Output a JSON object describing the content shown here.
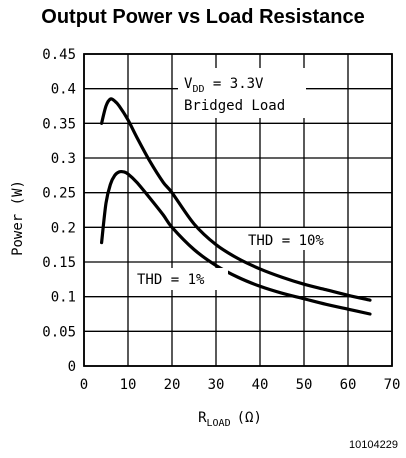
{
  "chart_data": {
    "type": "line",
    "title": "Output Power vs Load Resistance",
    "xlabel": {
      "main": "R",
      "sub": "LOAD",
      "unit": "(Ω)"
    },
    "ylabel": "Power (W)",
    "xlim": [
      0,
      70
    ],
    "ylim": [
      0,
      0.45
    ],
    "xticks": [
      "0",
      "10",
      "20",
      "30",
      "40",
      "50",
      "60",
      "70"
    ],
    "yticks": [
      "0",
      "0.05",
      "0.1",
      "0.15",
      "0.2",
      "0.25",
      "0.3",
      "0.35",
      "0.4",
      "0.45"
    ],
    "grid": true,
    "series": [
      {
        "name": "THD = 10%",
        "x": [
          4,
          5,
          6,
          7,
          8,
          10,
          12,
          15,
          18,
          20,
          25,
          30,
          35,
          40,
          45,
          50,
          55,
          60,
          65
        ],
        "y": [
          0.35,
          0.375,
          0.385,
          0.382,
          0.375,
          0.355,
          0.33,
          0.295,
          0.265,
          0.25,
          0.205,
          0.175,
          0.155,
          0.14,
          0.128,
          0.118,
          0.11,
          0.102,
          0.095
        ]
      },
      {
        "name": "THD = 1%",
        "x": [
          4,
          5,
          6,
          7,
          8,
          9,
          10,
          12,
          15,
          18,
          20,
          25,
          30,
          35,
          40,
          45,
          50,
          55,
          60,
          65
        ],
        "y": [
          0.178,
          0.235,
          0.262,
          0.275,
          0.28,
          0.28,
          0.277,
          0.265,
          0.242,
          0.218,
          0.2,
          0.168,
          0.145,
          0.128,
          0.115,
          0.105,
          0.097,
          0.089,
          0.082,
          0.075
        ]
      }
    ],
    "annotations": {
      "vdd": {
        "main": "V",
        "sub": "DD",
        "rest": " = 3.3V"
      },
      "load": "Bridged Load",
      "thd10": "THD = 10%",
      "thd1": "THD = 1%"
    },
    "figure_id": "10104229"
  }
}
